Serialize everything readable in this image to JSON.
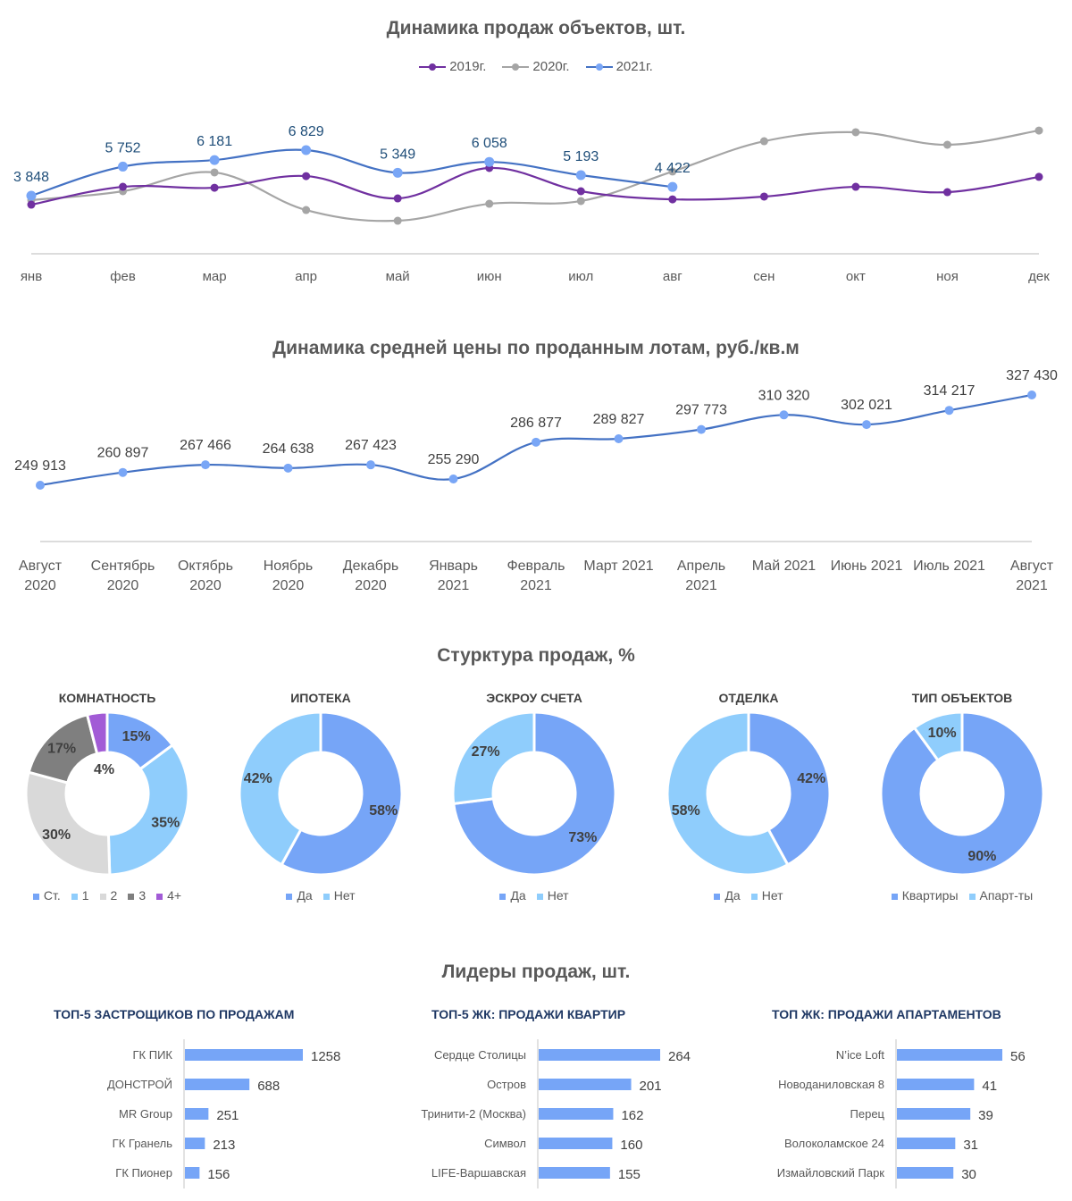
{
  "sales_dynamics": {
    "title": "Динамика продаж объектов, шт.",
    "chart_data": {
      "type": "line",
      "title": "Динамика продаж объектов, шт.",
      "categories": [
        "янв",
        "фев",
        "мар",
        "апр",
        "май",
        "июн",
        "июл",
        "авг",
        "сен",
        "окт",
        "ноя",
        "дек"
      ],
      "series": [
        {
          "name": "2019г.",
          "color": "#7030a0",
          "labeled": false,
          "values": [
            3260,
            4430,
            4370,
            5130,
            3670,
            5660,
            4140,
            3610,
            3790,
            4430,
            4080,
            5080
          ]
        },
        {
          "name": "2020г.",
          "color": "#a5a5a5",
          "labeled": false,
          "values": [
            3560,
            4140,
            5370,
            2910,
            2210,
            3320,
            3500,
            5430,
            7410,
            8000,
            7180,
            8110
          ]
        },
        {
          "name": "2021г.",
          "color": "#4472c4",
          "marker_color": "#79a6f6",
          "labeled": true,
          "values": [
            3848,
            5752,
            6181,
            6829,
            5349,
            6058,
            5193,
            4422
          ]
        }
      ],
      "data_labels": [
        "3 848",
        "5 752",
        "6 181",
        "6 829",
        "5 349",
        "6 058",
        "5 193",
        "4 422"
      ],
      "ylim": [
        0,
        9000
      ],
      "grid": false,
      "legend_position": "top"
    }
  },
  "price_dynamics": {
    "title": "Динамика средней цены по проданным лотам, руб./кв.м",
    "chart_data": {
      "type": "line",
      "title": "Динамика средней цены по проданным лотам, руб./кв.м",
      "categories": [
        [
          "Август",
          "2020"
        ],
        [
          "Сентябрь",
          "2020"
        ],
        [
          "Октябрь",
          "2020"
        ],
        [
          "Ноябрь",
          "2020"
        ],
        [
          "Декабрь",
          "2020"
        ],
        [
          "Январь",
          "2021"
        ],
        [
          "Февраль",
          "2021"
        ],
        [
          "Март 2021"
        ],
        [
          "Апрель",
          "2021"
        ],
        [
          "Май 2021"
        ],
        [
          "Июнь 2021"
        ],
        [
          "Июль 2021"
        ],
        [
          "Август",
          "2021"
        ]
      ],
      "series": [
        {
          "name": "Средняя цена",
          "color": "#4472c4",
          "marker_color": "#79a6f6",
          "values": [
            249913,
            260897,
            267466,
            264638,
            267423,
            255290,
            286877,
            289827,
            297773,
            310320,
            302021,
            314217,
            327430
          ]
        }
      ],
      "data_labels": [
        "249 913",
        "260 897",
        "267 466",
        "264 638",
        "267 423",
        "255 290",
        "286 877",
        "289 827",
        "297 773",
        "310 320",
        "302 021",
        "314 217",
        "327 430"
      ],
      "ylim": [
        160000,
        340000
      ],
      "grid": false
    }
  },
  "structure": {
    "title": "Стурктура продаж, %",
    "chart_data": [
      {
        "type": "pie",
        "title": "КОМНАТНОСТЬ",
        "labels": [
          "Ст.",
          "1",
          "2",
          "3",
          "4+"
        ],
        "values": [
          15,
          35,
          30,
          17,
          4
        ],
        "data_labels": [
          "15%",
          "35%",
          "30%",
          "17%",
          "4%"
        ],
        "colors": [
          "#76a5f7",
          "#8fcdfc",
          "#d9d9d9",
          "#7f7f7f",
          "#a25bd6"
        ]
      },
      {
        "type": "pie",
        "title": "ИПОТЕКА",
        "labels": [
          "Да",
          "Нет"
        ],
        "values": [
          58,
          42
        ],
        "data_labels": [
          "58%",
          "42%"
        ],
        "colors": [
          "#76a5f7",
          "#8fcdfc"
        ]
      },
      {
        "type": "pie",
        "title": "ЭСКРОУ СЧЕТА",
        "labels": [
          "Да",
          "Нет"
        ],
        "values": [
          73,
          27
        ],
        "data_labels": [
          "73%",
          "27%"
        ],
        "colors": [
          "#76a5f7",
          "#8fcdfc"
        ]
      },
      {
        "type": "pie",
        "title": "ОТДЕЛКА",
        "labels": [
          "Да",
          "Нет"
        ],
        "values": [
          42,
          58
        ],
        "data_labels": [
          "42%",
          "58%"
        ],
        "colors": [
          "#76a5f7",
          "#8fcdfc"
        ]
      },
      {
        "type": "pie",
        "title": "ТИП ОБЪЕКТОВ",
        "labels": [
          "Квартиры",
          "Апарт-ты"
        ],
        "values": [
          90,
          10
        ],
        "data_labels": [
          "90%",
          "10%"
        ],
        "colors": [
          "#76a5f7",
          "#8fcdfc"
        ]
      }
    ]
  },
  "leaders": {
    "title": "Лидеры продаж, шт.",
    "chart_data": [
      {
        "type": "bar",
        "orientation": "horizontal",
        "title": "ТОП-5 ЗАСТРОЩИКОВ ПО ПРОДАЖАМ",
        "categories": [
          "ГК ПИК",
          "ДОНСТРОЙ",
          "MR Group",
          "ГК Гранель",
          "ГК Пионер"
        ],
        "values": [
          1258,
          688,
          251,
          213,
          156
        ],
        "color": "#76a5f7",
        "xlim": [
          0,
          1400
        ]
      },
      {
        "type": "bar",
        "orientation": "horizontal",
        "title": "ТОП-5 ЖК: ПРОДАЖИ КВАРТИР",
        "categories": [
          "Сердце Столицы",
          "Остров",
          "Тринити-2 (Москва)",
          "Символ",
          "LIFE-Варшавская"
        ],
        "values": [
          264,
          201,
          162,
          160,
          155
        ],
        "color": "#76a5f7",
        "xlim": [
          0,
          340
        ]
      },
      {
        "type": "bar",
        "orientation": "horizontal",
        "title": "ТОП ЖК: ПРОДАЖИ АПАРТАМЕНТОВ",
        "categories": [
          "N’ice Loft",
          "Новоданиловская 8",
          "Перец",
          "Волоколамское 24",
          "Измайловский Парк"
        ],
        "values": [
          56,
          41,
          39,
          31,
          30
        ],
        "color": "#76a5f7",
        "xlim": [
          0,
          80
        ]
      }
    ]
  }
}
